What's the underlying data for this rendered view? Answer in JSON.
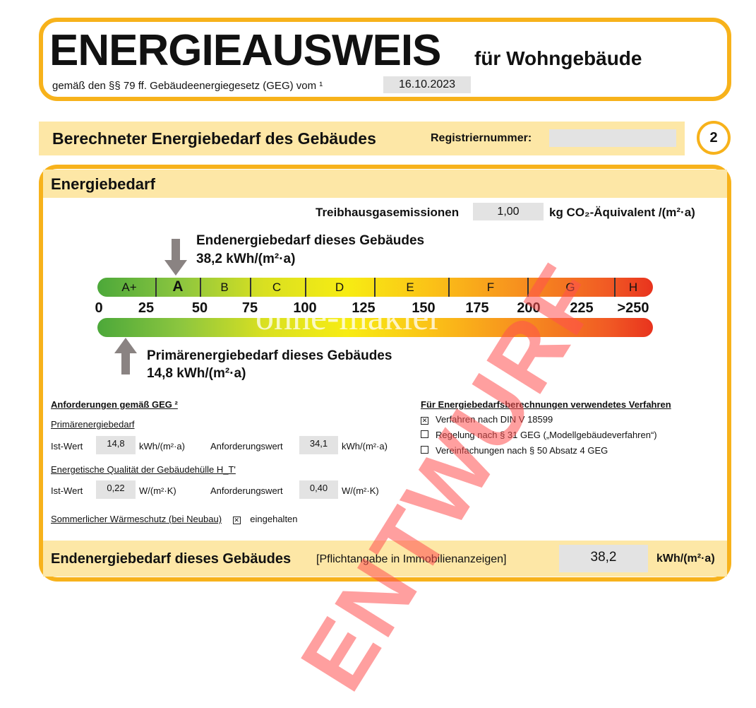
{
  "header": {
    "title": "ENERGIEAUSWEIS",
    "subtitle": "für Wohngebäude",
    "legal": "gemäß den §§ 79 ff. Gebäudeenergiegesetz (GEG) vom ¹",
    "date": "16.10.2023"
  },
  "section": {
    "title": "Berechneter Energiebedarf des Gebäudes",
    "reg_label": "Registriernummer:",
    "reg_value": "",
    "page": "2"
  },
  "energy": {
    "title": "Energiebedarf",
    "ghg_label": "Treibhausgasemissionen",
    "ghg_value": "1,00",
    "ghg_unit": "kg CO₂-Äquivalent /(m²·a)",
    "end_label": "Endenergiebedarf dieses Gebäudes",
    "end_value": "38,2 kWh/(m²·a)",
    "prim_label": "Primärenergiebedarf dieses Gebäudes",
    "prim_value": "14,8 kWh/(m²·a)",
    "end_energy_kwh": 38.2,
    "primary_energy_kwh": 14.8,
    "classes": [
      "A+",
      "A",
      "B",
      "C",
      "D",
      "E",
      "F",
      "G",
      "H"
    ],
    "ticks": [
      "0",
      "25",
      "50",
      "75",
      "100",
      "125",
      "150",
      "175",
      "200",
      "225",
      ">250"
    ],
    "current_class": "A"
  },
  "requirements": {
    "title": "Anforderungen gemäß GEG ²",
    "primary_title": "Primärenergiebedarf",
    "ist_label": "Ist-Wert",
    "ist_primary": "14,8",
    "unit_kwh": "kWh/(m²·a)",
    "anf_label": "Anforderungswert",
    "anf_primary": "34,1",
    "hull_title": "Energetische Qualität der Gebäudehülle H_T'",
    "ist_hull": "0,22",
    "unit_w": "W/(m²·K)",
    "anf_hull": "0,40",
    "summer_label": "Sommerlicher Wärmeschutz (bei Neubau)",
    "summer_checked": true,
    "summer_status": "eingehalten"
  },
  "method": {
    "title": "Für Energiebedarfsberechnungen verwendetes Verfahren",
    "options": [
      {
        "label": "Verfahren nach DIN V 18599",
        "checked": true
      },
      {
        "label": "Regelung nach § 31 GEG („Modellgebäudeverfahren“)",
        "checked": false
      },
      {
        "label": "Vereinfachungen nach § 50 Absatz 4 GEG",
        "checked": false
      }
    ]
  },
  "footer": {
    "label": "Endenergiebedarf dieses Gebäudes",
    "note": "[Pflichtangabe in Immobilienanzeigen]",
    "value": "38,2",
    "unit": "kWh/(m²·a)"
  },
  "watermarks": {
    "stamp": "ENTWURF",
    "brand": "ohne-makler"
  },
  "colors": {
    "border": "#f7b21b",
    "band": "#fde7a6",
    "stamp": "#ff5a5a"
  }
}
